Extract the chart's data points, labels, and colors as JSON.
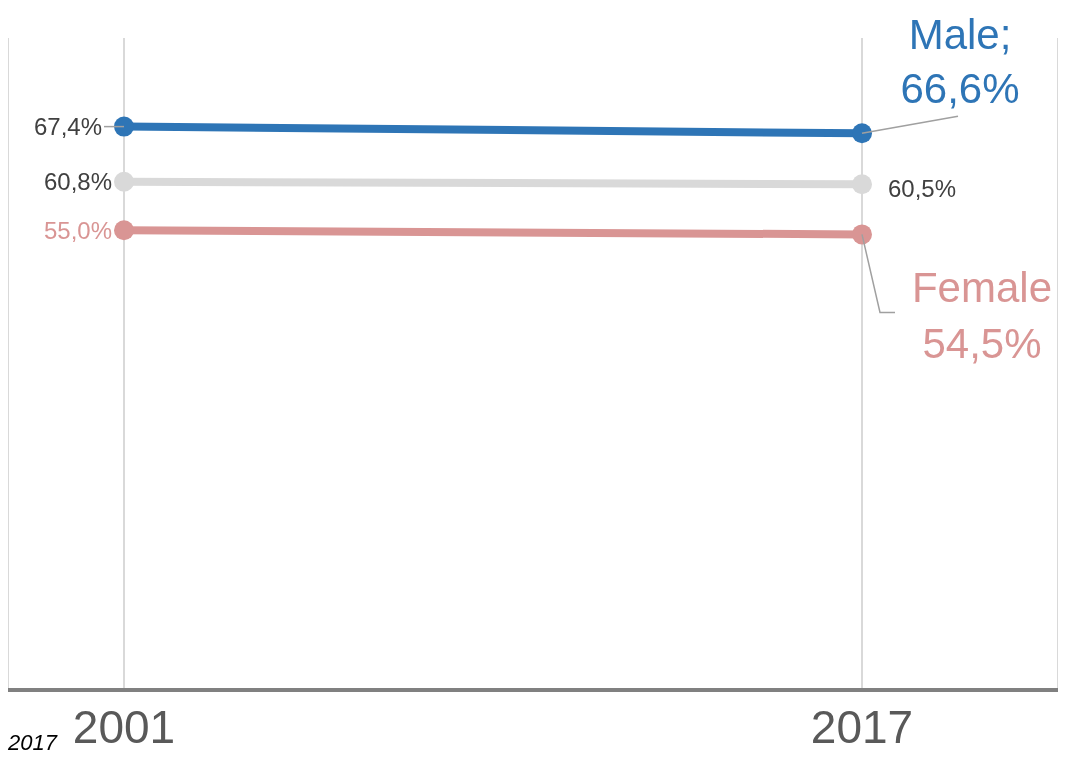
{
  "chart_data": {
    "type": "line",
    "categories": [
      "2001",
      "2017"
    ],
    "series": [
      {
        "name": "Male;",
        "color": "#2e75b6",
        "values": [
          67.4,
          66.6
        ],
        "value_labels": [
          "67,4%",
          "66,6%"
        ]
      },
      {
        "color": "#d9d9d9",
        "values": [
          60.8,
          60.5
        ],
        "value_labels": [
          "60,8%",
          "60,5%"
        ]
      },
      {
        "name": "Female",
        "color": "#d99594",
        "values": [
          55.0,
          54.5
        ],
        "value_labels": [
          "55,0%",
          "54,5%"
        ]
      }
    ],
    "ylim": [
      0,
      78
    ],
    "grid": "x",
    "marker": "circle",
    "line_style": "solid",
    "annotations": [
      "2017"
    ]
  }
}
